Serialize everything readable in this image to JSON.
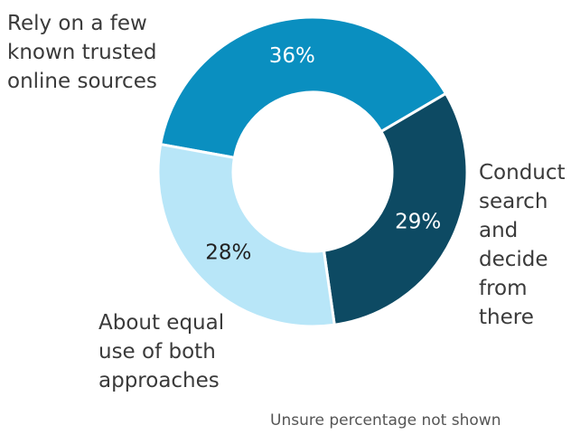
{
  "chart_data": {
    "type": "pie",
    "subtype": "donut",
    "slices": [
      {
        "label": "Rely on a few known trusted online sources",
        "value": 36,
        "value_label": "36%",
        "color": "#0a8fc0",
        "text_color": "#ffffff"
      },
      {
        "label": "Conduct search and decide from there",
        "value": 29,
        "value_label": "29%",
        "color": "#0d4a63",
        "text_color": "#ffffff"
      },
      {
        "label": "About equal use of both approaches",
        "value": 28,
        "value_label": "28%",
        "color": "#b8e6f8",
        "text_color": "#222222"
      }
    ],
    "category_labels": {
      "trusted": "Rely on a few\nknown trusted\nonline sources",
      "search": "Conduct\nsearch\nand\ndecide\nfrom\nthere",
      "equal": "About equal\nuse of both\napproaches"
    },
    "footnote": "Unsure percentage not shown",
    "legend": "none"
  }
}
